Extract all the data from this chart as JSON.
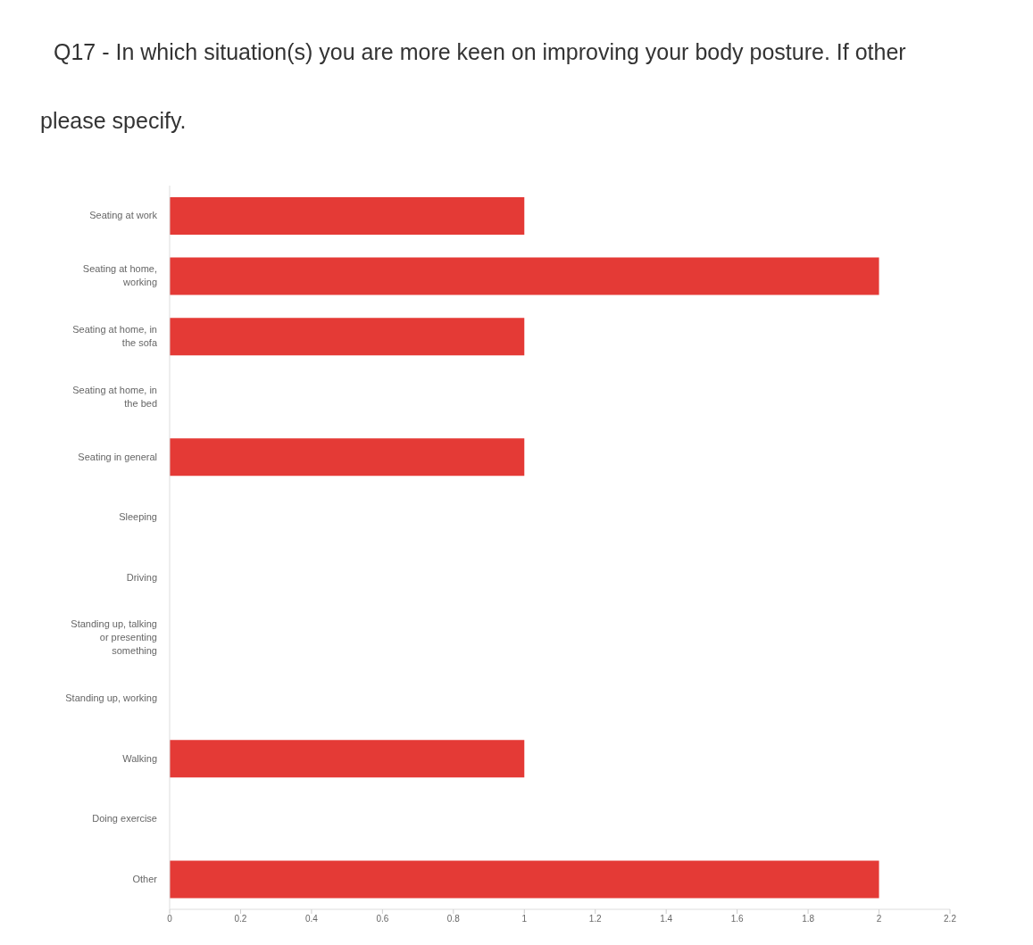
{
  "chart_data": {
    "type": "bar",
    "orientation": "horizontal",
    "title": "Q17 - In which situation(s) you are more keen on improving your body posture. If other please specify.",
    "categories": [
      "Seating at work",
      "Seating at home, working",
      "Seating at home, in the sofa",
      "Seating at home, in the bed",
      "Seating in general",
      "Sleeping",
      "Driving",
      "Standing up, talking or presenting something",
      "Standing up, working",
      "Walking",
      "Doing exercise",
      "Other"
    ],
    "values": [
      1,
      2,
      1,
      0,
      1,
      0,
      0,
      0,
      0,
      1,
      0,
      2
    ],
    "color": "#e43a36",
    "xlim": [
      0,
      2.2
    ],
    "xticks": [
      0,
      0.2,
      0.4,
      0.6,
      0.8,
      1,
      1.2,
      1.4,
      1.6,
      1.8,
      2,
      2.2
    ]
  }
}
